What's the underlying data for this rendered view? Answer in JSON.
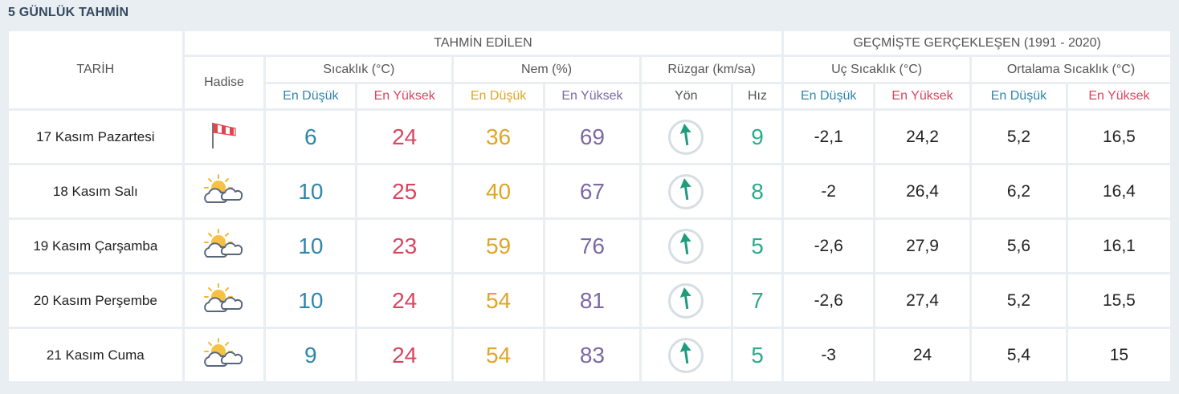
{
  "title": "5 GÜNLÜK TAHMİN",
  "headers": {
    "tarih": "TARİH",
    "tahmin": "TAHMİN EDİLEN",
    "gecmis": "GEÇMİŞTE GERÇEKLEŞEN (1991 - 2020)",
    "hadise": "Hadise",
    "sicaklik": "Sıcaklık (°C)",
    "nem": "Nem (%)",
    "ruzgar": "Rüzgar (km/sa)",
    "uc": "Uç Sıcaklık (°C)",
    "ortalama": "Ortalama Sıcaklık (°C)",
    "min": "En Düşük",
    "max": "En Yüksek",
    "yon": "Yön",
    "hiz": "Hız"
  },
  "rows": [
    {
      "date": "17 Kasım Pazartesi",
      "icon": "windsock-icon",
      "temp_min": "6",
      "temp_max": "24",
      "hum_min": "36",
      "hum_max": "69",
      "wind_dir": "north-arrow",
      "wind_speed": "9",
      "ext_min": "-2,1",
      "ext_max": "24,2",
      "avg_min": "5,2",
      "avg_max": "16,5"
    },
    {
      "date": "18 Kasım Salı",
      "icon": "partly-cloudy-icon",
      "temp_min": "10",
      "temp_max": "25",
      "hum_min": "40",
      "hum_max": "67",
      "wind_dir": "north-arrow",
      "wind_speed": "8",
      "ext_min": "-2",
      "ext_max": "26,4",
      "avg_min": "6,2",
      "avg_max": "16,4"
    },
    {
      "date": "19 Kasım Çarşamba",
      "icon": "partly-cloudy-icon",
      "temp_min": "10",
      "temp_max": "23",
      "hum_min": "59",
      "hum_max": "76",
      "wind_dir": "north-arrow",
      "wind_speed": "5",
      "ext_min": "-2,6",
      "ext_max": "27,9",
      "avg_min": "5,6",
      "avg_max": "16,1"
    },
    {
      "date": "20 Kasım Perşembe",
      "icon": "partly-cloudy-icon",
      "temp_min": "10",
      "temp_max": "24",
      "hum_min": "54",
      "hum_max": "81",
      "wind_dir": "north-arrow",
      "wind_speed": "7",
      "ext_min": "-2,6",
      "ext_max": "27,4",
      "avg_min": "5,2",
      "avg_max": "15,5"
    },
    {
      "date": "21 Kasım Cuma",
      "icon": "partly-cloudy-icon",
      "temp_min": "9",
      "temp_max": "24",
      "hum_min": "54",
      "hum_max": "83",
      "wind_dir": "north-arrow",
      "wind_speed": "5",
      "ext_min": "-3",
      "ext_max": "24",
      "avg_min": "5,4",
      "avg_max": "15"
    }
  ]
}
